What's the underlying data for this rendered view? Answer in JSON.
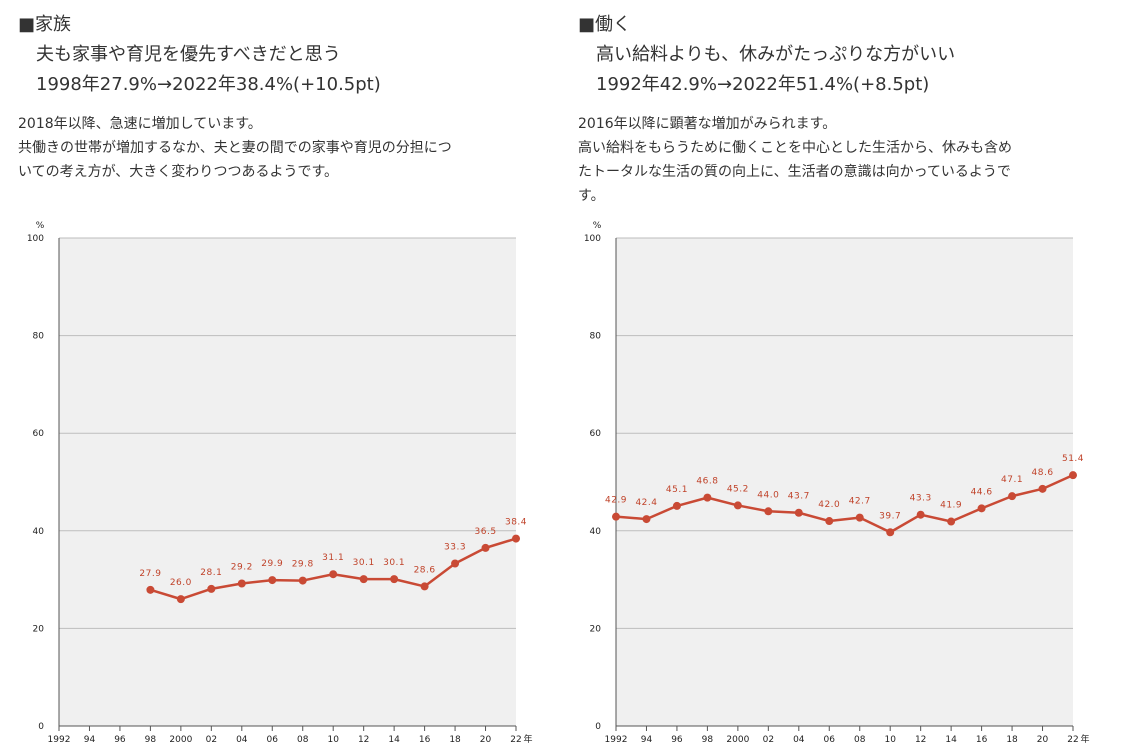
{
  "panels": [
    {
      "heading": "■家族",
      "subtitle": "夫も家事や育児を優先すべきだと思う",
      "change": "1998年27.9%→2022年38.4%(+10.5pt)",
      "description": [
        "2018年以降、急速に増加しています。",
        "共働きの世帯が増加するなか、夫と妻の間での家事や育児の分担につ",
        "いての考え方が、大きく変わりつつあるようです。"
      ]
    },
    {
      "heading": "■働く",
      "subtitle": "高い給料よりも、休みがたっぷりな方がいい",
      "change": "1992年42.9%→2022年51.4%(+8.5pt)",
      "description": [
        "2016年以降に顕著な増加がみられます。",
        "高い給料をもらうために働くことを中心とした生活から、休みも含め",
        "たトータルな生活の質の向上に、生活者の意識は向かっているようで",
        "す。"
      ]
    }
  ],
  "colors": {
    "line": "#c94a35",
    "label": "#c0432a",
    "plot_bg": "#f0f0f0",
    "grid": "#bdbdbd"
  },
  "chart_data": [
    {
      "type": "line",
      "ylabel": "%",
      "xlabel": "年",
      "ylim": [
        0,
        100
      ],
      "yticks": [
        "0",
        "20",
        "40",
        "60",
        "80",
        "100"
      ],
      "x_ticklabels": [
        "1992",
        "94",
        "96",
        "98",
        "2000",
        "02",
        "04",
        "06",
        "08",
        "10",
        "12",
        "14",
        "16",
        "18",
        "20",
        "22"
      ],
      "x": [
        1998,
        2000,
        2002,
        2004,
        2006,
        2008,
        2010,
        2012,
        2014,
        2016,
        2018,
        2020,
        2022
      ],
      "values": [
        27.9,
        26.0,
        28.1,
        29.2,
        29.9,
        29.8,
        31.1,
        30.1,
        30.1,
        28.6,
        33.3,
        36.5,
        38.4
      ],
      "labels": [
        "27.9",
        "26.0",
        "28.1",
        "29.2",
        "29.9",
        "29.8",
        "31.1",
        "30.1",
        "30.1",
        "28.6",
        "33.3",
        "36.5",
        "38.4"
      ]
    },
    {
      "type": "line",
      "ylabel": "%",
      "xlabel": "年",
      "ylim": [
        0,
        100
      ],
      "yticks": [
        "0",
        "20",
        "40",
        "60",
        "80",
        "100"
      ],
      "x_ticklabels": [
        "1992",
        "94",
        "96",
        "98",
        "2000",
        "02",
        "04",
        "06",
        "08",
        "10",
        "12",
        "14",
        "16",
        "18",
        "20",
        "22"
      ],
      "x": [
        1992,
        1994,
        1996,
        1998,
        2000,
        2002,
        2004,
        2006,
        2008,
        2010,
        2012,
        2014,
        2016,
        2018,
        2020,
        2022
      ],
      "values": [
        42.9,
        42.4,
        45.1,
        46.8,
        45.2,
        44.0,
        43.7,
        42.0,
        42.7,
        39.7,
        43.3,
        41.9,
        44.6,
        47.1,
        48.6,
        51.4
      ],
      "labels": [
        "42.9",
        "42.4",
        "45.1",
        "46.8",
        "45.2",
        "44.0",
        "43.7",
        "42.0",
        "42.7",
        "39.7",
        "43.3",
        "41.9",
        "44.6",
        "47.1",
        "48.6",
        "51.4"
      ]
    }
  ]
}
